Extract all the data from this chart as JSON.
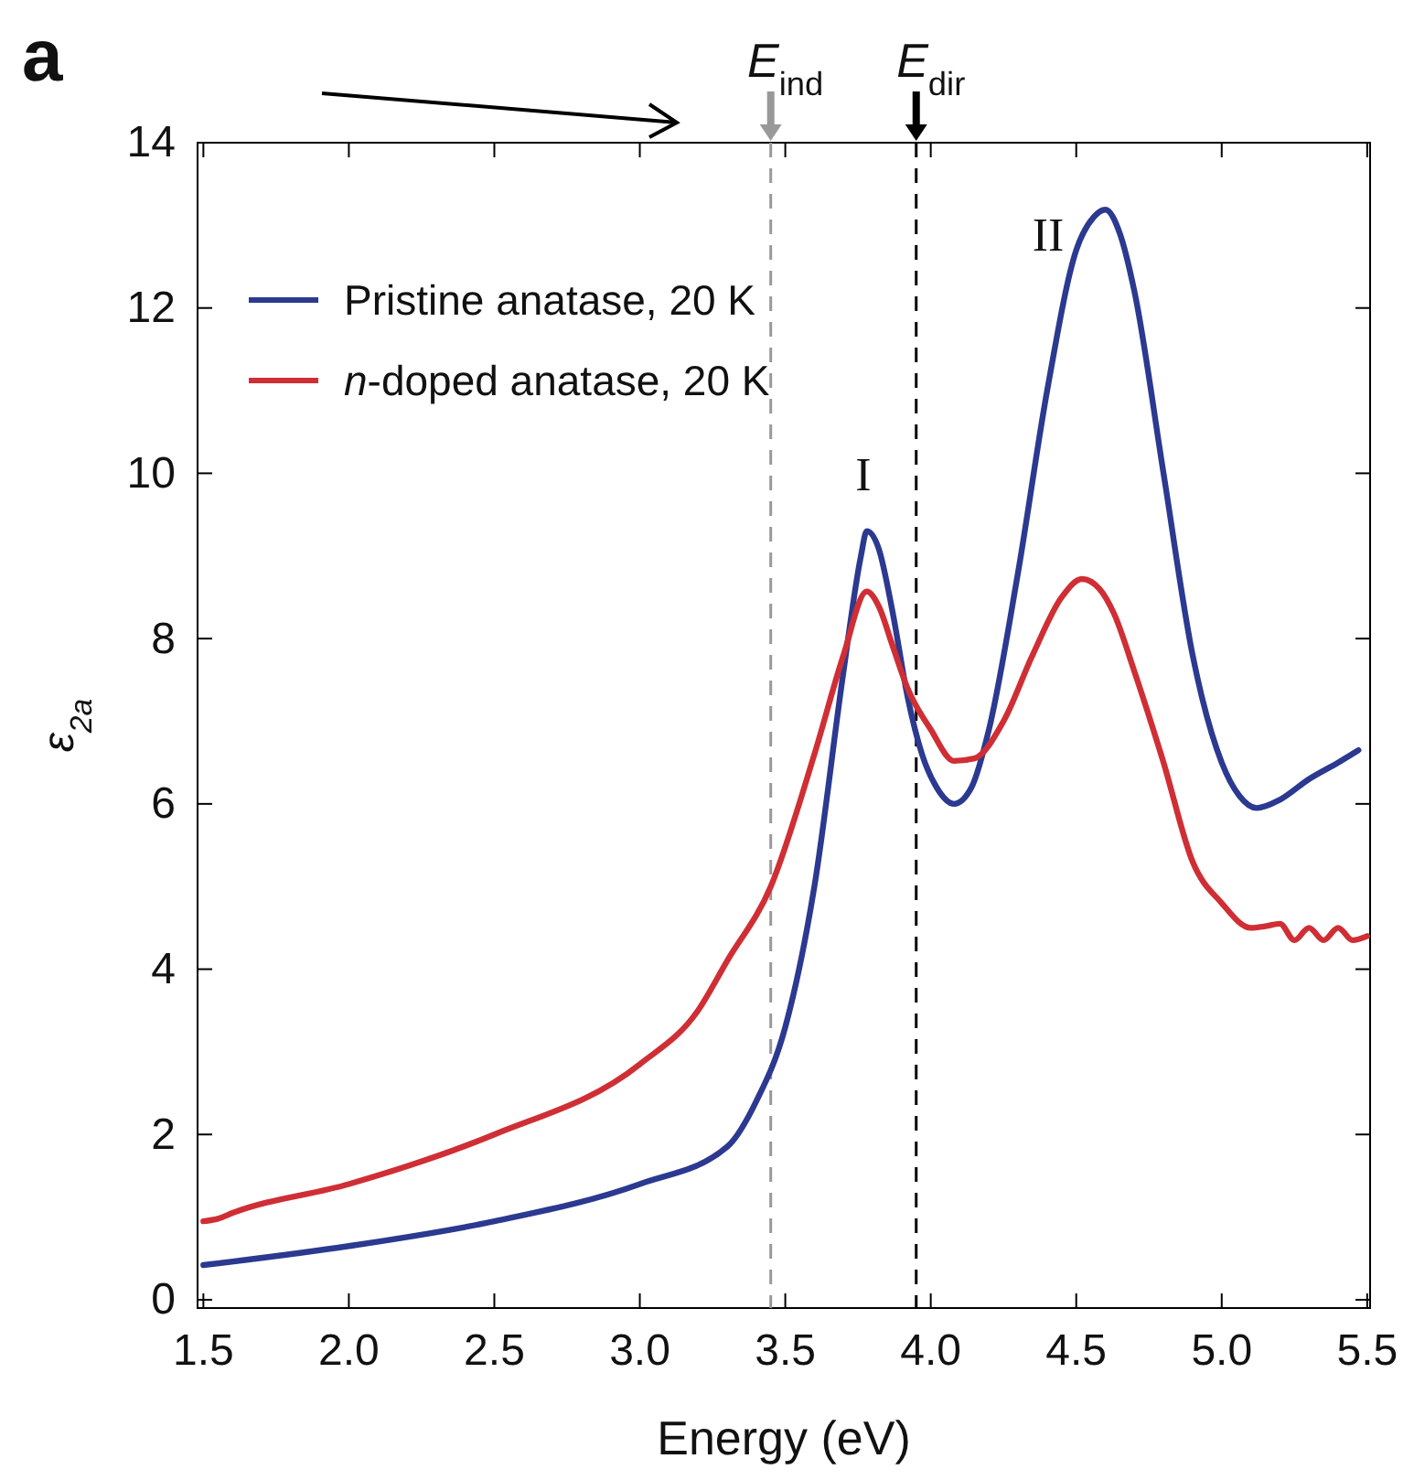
{
  "chart_data": {
    "type": "line",
    "xlabel": "Energy (eV)",
    "ylabel": "ε$_{2a}$",
    "xlim": [
      1.48,
      5.51
    ],
    "ylim": [
      -0.1,
      14
    ],
    "xticks": [
      1.5,
      {
        "value": 2,
        "label": "2.0"
      },
      2.5,
      {
        "value": 3,
        "label": "3.0"
      },
      3.5,
      {
        "value": 4,
        "label": "4.0"
      },
      4.5,
      {
        "value": 5,
        "label": "5.0"
      },
      5.5
    ],
    "yticks": [
      0,
      2,
      4,
      6,
      8,
      10,
      12,
      14
    ],
    "grid": false,
    "legend": "top left",
    "marker": "none",
    "line_style": "solid",
    "series": [
      {
        "name": "Pristine anatase, 20 K",
        "color": "#2b3990",
        "x": [
          1.5,
          2.0,
          2.5,
          3.0,
          3.3,
          3.4,
          3.5,
          3.6,
          3.7,
          3.76,
          3.78,
          3.82,
          3.87,
          3.92,
          3.97,
          4.02,
          4.08,
          4.14,
          4.2,
          4.3,
          4.4,
          4.5,
          4.56,
          4.6,
          4.65,
          4.7,
          4.8,
          4.9,
          5.0,
          5.06,
          5.12,
          5.2,
          5.3,
          5.4,
          5.47
        ],
        "values": [
          0.42,
          0.65,
          0.95,
          1.4,
          1.85,
          2.4,
          3.3,
          5.0,
          7.6,
          9.0,
          9.3,
          9.1,
          8.3,
          7.3,
          6.6,
          6.2,
          6.0,
          6.2,
          6.9,
          8.8,
          11.0,
          12.7,
          13.1,
          13.19,
          12.9,
          12.2,
          10.0,
          7.8,
          6.5,
          6.1,
          5.95,
          6.05,
          6.3,
          6.5,
          6.65
        ]
      },
      {
        "name": "n-doped anatase, 20 K",
        "color": "#d02e35",
        "x": [
          1.5,
          1.55,
          1.6,
          2.0,
          2.5,
          3.0,
          3.2,
          3.3,
          3.45,
          3.6,
          3.7,
          3.78,
          3.82,
          3.87,
          3.92,
          4.0,
          4.08,
          4.15,
          4.25,
          4.35,
          4.45,
          4.52,
          4.58,
          4.63,
          4.7,
          4.8,
          4.9,
          5.0,
          5.1,
          5.15,
          5.2,
          5.25,
          5.3,
          5.35,
          5.4,
          5.45,
          5.5
        ],
        "values": [
          0.95,
          0.98,
          1.05,
          1.4,
          2.0,
          2.85,
          3.5,
          4.1,
          5.0,
          6.6,
          7.8,
          8.57,
          8.4,
          7.9,
          7.4,
          6.9,
          6.52,
          6.55,
          7.0,
          7.8,
          8.5,
          8.72,
          8.6,
          8.3,
          7.6,
          6.5,
          5.3,
          4.8,
          4.5,
          4.52,
          4.55,
          4.35,
          4.5,
          4.35,
          4.5,
          4.35,
          4.4
        ]
      }
    ],
    "ref_lines": [
      {
        "axis": "x",
        "value": 3.45,
        "label": "E$_{ind}$",
        "color": "#999999",
        "line_style": "dashed"
      },
      {
        "axis": "x",
        "value": 3.95,
        "label": "E$_{dir}$",
        "color": "#000000",
        "line_style": "dashed"
      }
    ],
    "annotations": [
      "I",
      "II",
      "a"
    ]
  }
}
